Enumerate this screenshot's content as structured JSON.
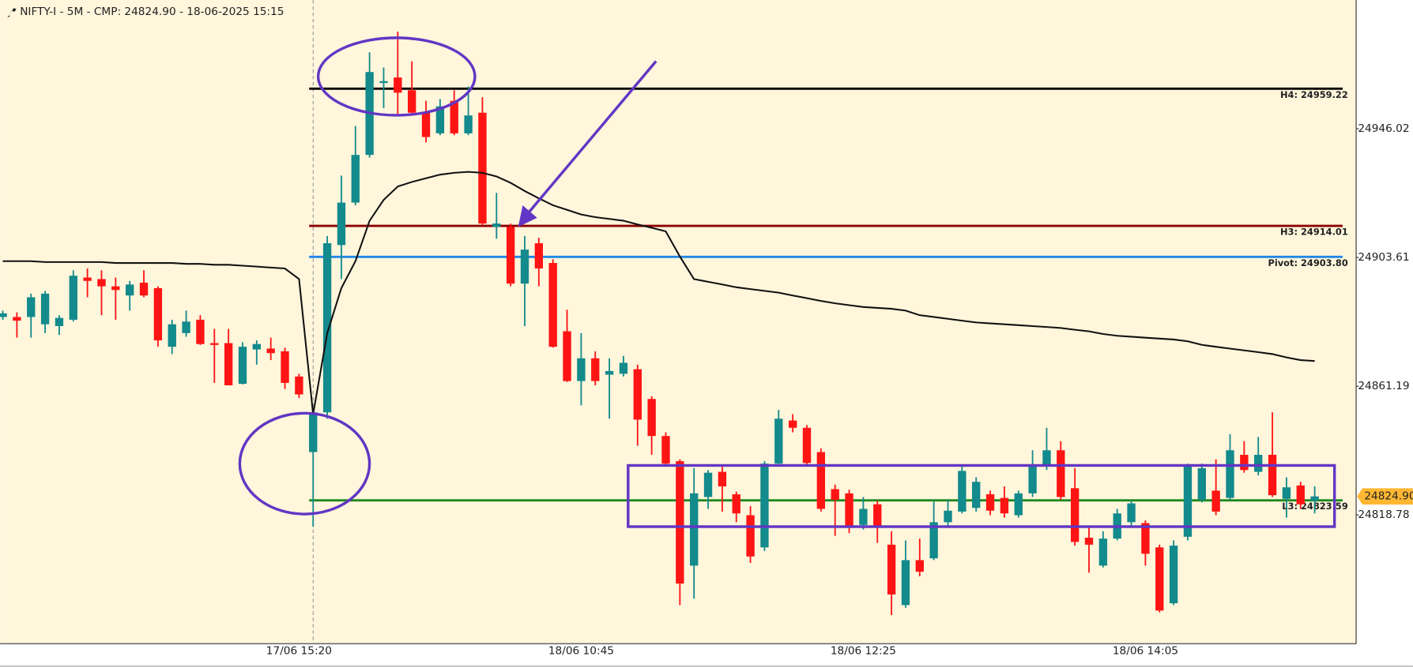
{
  "chart_data": {
    "type": "candlestick",
    "title": "NIFTY-I - 5M - CMP: 24824.90 - 18-06-2025 15:15",
    "categories": [
      null,
      null,
      null,
      null,
      null,
      null,
      null,
      null,
      null,
      null,
      null,
      null,
      null,
      null,
      null,
      null,
      null,
      null,
      null,
      null,
      null,
      "17/06 15:20",
      null,
      null,
      null,
      null,
      null,
      null,
      null,
      null,
      null,
      null,
      null,
      null,
      null,
      null,
      null,
      null,
      null,
      null,
      null,
      "18/06 10:45",
      null,
      null,
      null,
      null,
      null,
      null,
      null,
      null,
      null,
      null,
      null,
      null,
      null,
      null,
      null,
      null,
      null,
      null,
      null,
      "18/06 12:25",
      null,
      null,
      null,
      null,
      null,
      null,
      null,
      null,
      null,
      null,
      null,
      null,
      null,
      null,
      null,
      null,
      null,
      null,
      null,
      "18/06 14:05",
      null,
      null,
      null,
      null,
      null,
      null,
      null,
      null,
      null,
      null,
      null,
      null
    ],
    "open": [
      24884.0,
      24884.0,
      24884.0,
      24881.6,
      24881.0,
      24883.1,
      24897.0,
      24896.5,
      24894.1,
      24891.1,
      24895.3,
      24893.5,
      24874.2,
      24878.7,
      24883.1,
      24875.4,
      24875.4,
      24862.0,
      24873.3,
      24873.6,
      24872.7,
      24864.4,
      24839.5,
      24852.6,
      24907.7,
      24921.7,
      24937.4,
      24961.1,
      24962.9,
      24958.7,
      24951.3,
      24944.5,
      24955.2,
      24944.5,
      24951.3,
      24913.7,
      24913.7,
      24895.0,
      24908.3,
      24901.8,
      24879.3,
      24862.9,
      24870.4,
      24865.0,
      24865.3,
      24866.8,
      24857.0,
      24844.8,
      24836.5,
      24802.1,
      24824.7,
      24833.0,
      24825.6,
      24818.7,
      24808.1,
      24835.7,
      24849.9,
      24847.5,
      24839.5,
      24827.3,
      24825.9,
      24815.5,
      24822.3,
      24809.0,
      24789.1,
      24803.9,
      24804.5,
      24816.4,
      24819.9,
      24821.1,
      24825.6,
      24824.4,
      24818.7,
      24825.9,
      24835.1,
      24840.1,
      24827.6,
      24811.3,
      24802.1,
      24811.0,
      24816.4,
      24816.1,
      24808.1,
      24789.7,
      24811.6,
      24823.8,
      24826.8,
      24824.4,
      24838.6,
      24833.0,
      24838.6,
      24824.1,
      24828.5,
      24823.5
    ],
    "high": [
      24886.1,
      24885.5,
      24891.7,
      24892.6,
      24884.6,
      24899.4,
      24900.0,
      24899.4,
      24897.0,
      24895.9,
      24899.4,
      24894.1,
      24883.1,
      24886.1,
      24884.6,
      24880.1,
      24880.1,
      24875.7,
      24876.3,
      24877.2,
      24873.9,
      24865.3,
      24853.4,
      24910.7,
      24930.6,
      24946.9,
      24971.2,
      24966.2,
      24978.0,
      24968.2,
      24955.2,
      24955.8,
      24958.7,
      24959.9,
      24956.4,
      24924.9,
      24914.8,
      24910.7,
      24910.1,
      24903.0,
      24886.4,
      24878.7,
      24872.7,
      24870.4,
      24871.2,
      24868.3,
      24857.9,
      24846.0,
      24837.1,
      24834.2,
      24833.6,
      24835.4,
      24826.5,
      24821.7,
      24836.5,
      24853.4,
      24852.0,
      24848.4,
      24840.7,
      24828.8,
      24827.1,
      24824.7,
      24823.5,
      24813.4,
      24810.4,
      24811.0,
      24823.2,
      24823.8,
      24834.8,
      24831.2,
      24826.8,
      24828.2,
      24826.8,
      24840.1,
      24847.5,
      24843.1,
      24834.2,
      24814.9,
      24813.4,
      24820.8,
      24823.5,
      24817.0,
      24809.0,
      24810.4,
      24835.7,
      24835.7,
      24837.1,
      24845.4,
      24843.1,
      24844.5,
      24852.6,
      24831.2,
      24829.7,
      24828.2
    ],
    "low": [
      24883.1,
      24877.2,
      24877.2,
      24878.7,
      24878.1,
      24882.5,
      24890.5,
      24884.6,
      24883.1,
      24886.1,
      24890.5,
      24874.2,
      24871.8,
      24877.5,
      24874.8,
      24862.3,
      24861.5,
      24861.8,
      24868.3,
      24869.8,
      24860.3,
      24857.3,
      24814.9,
      24850.5,
      24896.5,
      24920.8,
      24936.5,
      24952.8,
      24950.4,
      24950.4,
      24941.5,
      24943.9,
      24943.9,
      24943.9,
      24914.2,
      24909.8,
      24894.1,
      24881.0,
      24894.1,
      24873.9,
      24862.6,
      24854.9,
      24861.5,
      24850.5,
      24864.4,
      24841.6,
      24838.6,
      24835.1,
      24789.1,
      24791.2,
      24820.8,
      24819.9,
      24816.4,
      24803.0,
      24806.9,
      24834.8,
      24846.0,
      24834.8,
      24819.9,
      24811.9,
      24812.8,
      24814.0,
      24809.6,
      24785.8,
      24788.2,
      24798.6,
      24803.9,
      24814.9,
      24819.3,
      24819.9,
      24818.7,
      24817.9,
      24817.9,
      24824.7,
      24833.6,
      24823.8,
      24808.7,
      24799.8,
      24801.5,
      24810.4,
      24814.9,
      24802.1,
      24786.7,
      24789.1,
      24810.4,
      24822.9,
      24818.7,
      24823.8,
      24832.7,
      24831.8,
      24824.7,
      24817.9,
      24820.8,
      24819.3
    ],
    "close": [
      24885.2,
      24882.8,
      24890.5,
      24891.7,
      24883.7,
      24897.6,
      24895.9,
      24894.1,
      24892.9,
      24894.7,
      24891.1,
      24876.3,
      24881.6,
      24882.5,
      24875.1,
      24874.8,
      24861.5,
      24874.2,
      24875.1,
      24872.1,
      24862.3,
      24858.5,
      24852.6,
      24908.3,
      24921.7,
      24937.4,
      24964.7,
      24961.7,
      24957.9,
      24951.3,
      24943.3,
      24953.4,
      24944.5,
      24950.4,
      24914.8,
      24914.8,
      24895.0,
      24906.2,
      24900.0,
      24874.2,
      24862.9,
      24870.4,
      24862.9,
      24866.2,
      24868.9,
      24850.2,
      24844.8,
      24835.7,
      24796.2,
      24825.9,
      24832.7,
      24828.2,
      24819.3,
      24805.1,
      24835.7,
      24850.5,
      24847.5,
      24835.9,
      24820.8,
      24823.8,
      24814.9,
      24820.8,
      24814.9,
      24792.6,
      24803.9,
      24800.1,
      24816.4,
      24820.2,
      24833.3,
      24829.7,
      24820.2,
      24819.3,
      24825.9,
      24835.4,
      24840.1,
      24824.7,
      24809.9,
      24809.0,
      24811.0,
      24819.3,
      24822.6,
      24806.0,
      24787.3,
      24808.7,
      24834.8,
      24834.2,
      24819.9,
      24840.1,
      24833.6,
      24838.6,
      24825.3,
      24827.9,
      24822.3,
      24824.9
    ],
    "up_color": "#138a8c",
    "down_color": "#ff1414",
    "line": {
      "color": "#111111",
      "values": [
        24902.4,
        24902.4,
        24902.4,
        24902.1,
        24902.1,
        24902.1,
        24902.1,
        24902.1,
        24901.8,
        24901.8,
        24901.8,
        24901.8,
        24901.8,
        24901.5,
        24901.5,
        24901.2,
        24901.2,
        24900.9,
        24900.6,
        24900.3,
        24900.0,
        24896.5,
        24852.0,
        24878.7,
        24893.5,
        24902.4,
        24915.7,
        24922.6,
        24927.0,
        24928.5,
        24929.7,
        24930.9,
        24931.5,
        24931.8,
        24931.5,
        24930.3,
        24928.2,
        24925.5,
        24923.1,
        24920.8,
        24919.3,
        24917.8,
        24916.9,
        24916.3,
        24915.7,
        24914.5,
        24913.4,
        24912.2,
        24903.9,
        24896.5,
        24895.6,
        24894.7,
        24893.8,
        24893.2,
        24892.6,
        24892.0,
        24891.1,
        24890.2,
        24889.3,
        24888.5,
        24887.9,
        24887.3,
        24887.0,
        24886.7,
        24886.1,
        24884.6,
        24884.0,
        24883.4,
        24882.8,
        24882.2,
        24881.9,
        24881.6,
        24881.3,
        24881.0,
        24880.7,
        24880.4,
        24879.8,
        24879.3,
        24878.4,
        24877.8,
        24877.5,
        24877.2,
        24876.9,
        24876.6,
        24876.0,
        24874.8,
        24874.2,
        24873.6,
        24873.0,
        24872.4,
        24871.8,
        24870.7,
        24869.8,
        24869.5
      ]
    },
    "levels": [
      {
        "label": "H4: 24959.22",
        "value": 24959.22,
        "color": "#000000"
      },
      {
        "label": "H3: 24914.01",
        "value": 24914.01,
        "color": "#8b0000"
      },
      {
        "label": "Pivot: 24903.80",
        "value": 24903.8,
        "color": "#1e88e5"
      },
      {
        "label": "L3: 24823.59",
        "value": 24823.59,
        "color": "#1f8a1f"
      }
    ],
    "cmp": {
      "value": 24824.9,
      "label": "24824.90",
      "color": "#ffb733"
    },
    "ylim": [
      24776.38,
      24988.43
    ],
    "yticks": [
      24818.78,
      24861.19,
      24903.61,
      24946.02
    ],
    "grid": false
  }
}
